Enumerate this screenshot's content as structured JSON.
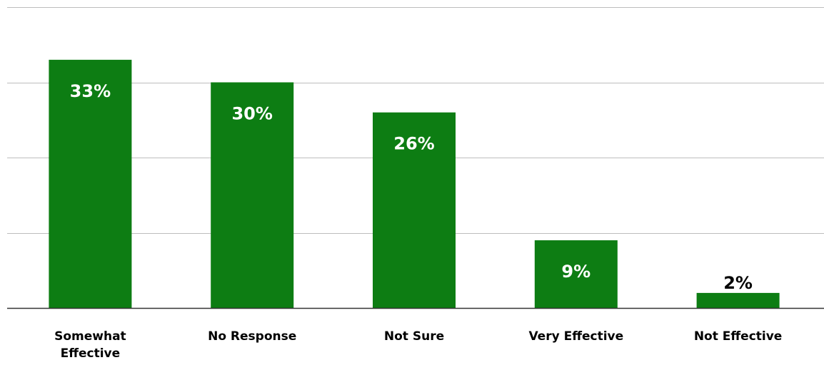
{
  "chart_data": {
    "type": "bar",
    "categories": [
      "Somewhat Effective",
      "No Response",
      "Not Sure",
      "Very Effective",
      "Not Effective"
    ],
    "values": [
      33,
      30,
      26,
      9,
      2
    ],
    "value_labels": [
      "33%",
      "30%",
      "26%",
      "9%",
      "2%"
    ],
    "category_lines": [
      [
        "Somewhat",
        "Effective"
      ],
      [
        "No Response"
      ],
      [
        "Not Sure"
      ],
      [
        "Very Effective"
      ],
      [
        "Not Effective"
      ]
    ],
    "ylim": [
      0,
      40
    ],
    "yticks": [
      0,
      10,
      20,
      30,
      40
    ],
    "grid": true,
    "bar_color": "#0d7d13",
    "label_color_inside": "#ffffff",
    "label_color_outside": "#000000"
  }
}
